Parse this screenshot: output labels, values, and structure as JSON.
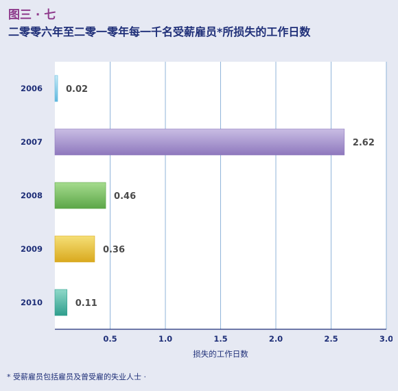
{
  "header": {
    "figure_label": "图三 · 七",
    "title": "二零零六年至二零一零年每一千名受薪雇员*所损失的工作日数"
  },
  "footnote": "* 受薪雇员包括雇员及曾受雇的失业人士 ·",
  "colors": {
    "background": "#e6e9f3",
    "plot_background": "#ffffff",
    "grid": "#8fb3d9",
    "axis": "#1f2f78",
    "label_text": "#1f2f78",
    "value_text": "#4a4a4a"
  },
  "chart_data": {
    "type": "bar",
    "orientation": "horizontal",
    "categories": [
      "2006",
      "2007",
      "2008",
      "2009",
      "2010"
    ],
    "values": [
      0.02,
      2.62,
      0.46,
      0.36,
      0.11
    ],
    "value_labels": [
      "0.02",
      "2.62",
      "0.46",
      "0.36",
      "0.11"
    ],
    "bar_colors": [
      [
        "#c9ecf8",
        "#5fb8de"
      ],
      [
        "#c9bde4",
        "#8e78bd"
      ],
      [
        "#a6dc8e",
        "#5ba648"
      ],
      [
        "#f5df76",
        "#d9a91e"
      ],
      [
        "#8fd9c9",
        "#2f9e8d"
      ]
    ],
    "x_ticks": [
      "0.5",
      "1.0",
      "1.5",
      "2.0",
      "2.5",
      "3.0"
    ],
    "x_tick_values": [
      0.5,
      1.0,
      1.5,
      2.0,
      2.5,
      3.0
    ],
    "xlim": [
      0,
      3.0
    ],
    "xlabel": "损失的工作日数",
    "grid": true
  }
}
